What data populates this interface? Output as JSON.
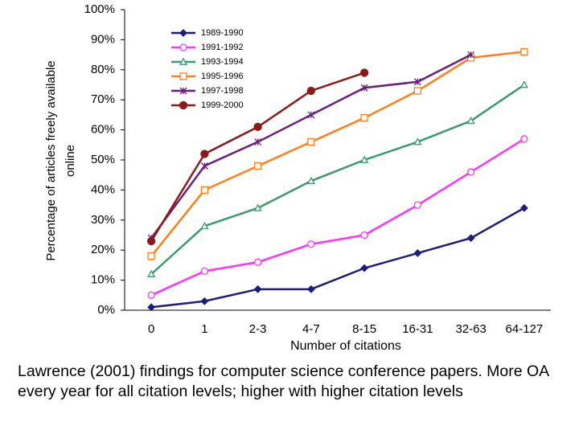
{
  "chart_data": {
    "type": "line",
    "y_label": [
      "Percentage of articles freely available",
      "online"
    ],
    "x_label": "Number of citations",
    "categories": [
      "0",
      "1",
      "2-3",
      "4-7",
      "8-15",
      "16-31",
      "32-63",
      "64-127"
    ],
    "ylim": [
      0,
      100
    ],
    "yticks": [
      {
        "value": 0,
        "label": "0%"
      },
      {
        "value": 10,
        "label": "10%"
      },
      {
        "value": 20,
        "label": "20%"
      },
      {
        "value": 30,
        "label": "30%"
      },
      {
        "value": 40,
        "label": "40%"
      },
      {
        "value": 50,
        "label": "50%"
      },
      {
        "value": 60,
        "label": "60%"
      },
      {
        "value": 70,
        "label": "70%"
      },
      {
        "value": 80,
        "label": "80%"
      },
      {
        "value": 90,
        "label": "90%"
      },
      {
        "value": 100,
        "label": "100%"
      }
    ],
    "grid": false,
    "legend": "top-left",
    "series": [
      {
        "name": "1989-1990",
        "color": "#1c1c7a",
        "marker": "diamond",
        "values": [
          1,
          3,
          7,
          7,
          14,
          19,
          24,
          34
        ]
      },
      {
        "name": "1991-1992",
        "color": "#ff33ff",
        "marker": "circle-open",
        "values": [
          5,
          13,
          16,
          22,
          25,
          35,
          46,
          57
        ]
      },
      {
        "name": "1993-1994",
        "color": "#3a9a6e",
        "marker": "triangle-open",
        "values": [
          12,
          28,
          34,
          43,
          50,
          56,
          63,
          75
        ]
      },
      {
        "name": "1995-1996",
        "color": "#ff7f1a",
        "marker": "square-open",
        "values": [
          18,
          40,
          48,
          56,
          64,
          73,
          84,
          86
        ]
      },
      {
        "name": "1997-1998",
        "color": "#6a1f7a",
        "marker": "star",
        "values": [
          24,
          48,
          56,
          65,
          74,
          76,
          85,
          null
        ]
      },
      {
        "name": "1999-2000",
        "color": "#8b1a1a",
        "marker": "circle",
        "values": [
          23,
          52,
          61,
          73,
          79,
          null,
          null,
          null
        ]
      }
    ]
  },
  "caption": "Lawrence (2001) findings for computer science conference papers.  More OA every year for all citation levels; higher with higher citation levels"
}
